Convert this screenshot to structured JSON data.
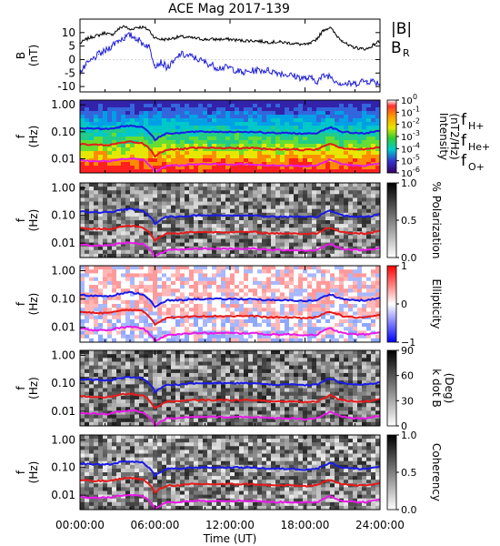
{
  "title": "ACE Mag 2017-139",
  "chart_data": [
    {
      "type": "line",
      "panel": "magnetic-field",
      "ylabel": "B",
      "yunit": "(nT)",
      "ylim": [
        -12,
        15
      ],
      "yticks": [
        "10",
        "5",
        "0",
        "-5",
        "-10"
      ],
      "ytick_values": [
        10,
        5,
        0,
        -5,
        -10
      ],
      "series": [
        {
          "name": "|B|",
          "color": "#000000",
          "x": [
            0,
            0.5,
            1,
            1.5,
            2,
            2.5,
            3,
            3.5,
            4,
            4.5,
            5,
            5.5,
            6,
            6.5,
            7,
            7.5,
            8,
            9,
            10,
            11,
            12,
            13,
            14,
            15,
            16,
            17,
            18,
            18.5,
            19,
            19.5,
            20,
            20.5,
            21,
            21.5,
            22,
            22.5,
            23,
            23.5,
            24
          ],
          "y": [
            6,
            7.5,
            8.5,
            9,
            10,
            9,
            11,
            12.5,
            11,
            12,
            12,
            11,
            8,
            7.5,
            7.5,
            8,
            8.5,
            8,
            7.5,
            7.5,
            7.5,
            7,
            7,
            6.5,
            6.5,
            6,
            5.5,
            6,
            8,
            11,
            12,
            9,
            7,
            5,
            4.5,
            4,
            4,
            5.5,
            7
          ]
        },
        {
          "name": "B",
          "sub": "R",
          "color": "#1f1fd6",
          "x": [
            0,
            0.5,
            1,
            1.5,
            2,
            2.5,
            3,
            3.5,
            4,
            4.5,
            5,
            5.5,
            6,
            6.5,
            7,
            7.5,
            8,
            9,
            10,
            11,
            12,
            13,
            14,
            15,
            16,
            17,
            18,
            18.5,
            19,
            19.5,
            20,
            20.5,
            21,
            21.5,
            22,
            22.5,
            23,
            23.5,
            24
          ],
          "y": [
            -5,
            -2,
            0,
            2,
            3,
            5,
            7,
            8,
            9,
            8,
            6,
            5,
            -2,
            -1,
            -3,
            -1,
            2,
            1,
            -1,
            -3,
            -3,
            -5,
            -4,
            -4,
            -5,
            -6,
            -7,
            -7,
            -8,
            -6,
            -6,
            -8,
            -9,
            -9,
            -9,
            -8,
            -8,
            -8,
            -9
          ]
        }
      ]
    },
    {
      "type": "heatmap",
      "panel": "intensity",
      "ylabel": "f",
      "yunit": "(Hz)",
      "colorbar": {
        "label_parts": [
          "Intensity",
          "(nT",
          "2",
          "/Hz)"
        ],
        "ticks": [
          "10",
          "10",
          "10",
          "10",
          "10",
          "10",
          "10"
        ],
        "tick_exponents": [
          "0",
          "-1",
          "-2",
          "-3",
          "-4",
          "-5",
          "-6"
        ]
      }
    },
    {
      "type": "heatmap",
      "panel": "polarization",
      "ylabel": "f",
      "yunit": "(Hz)",
      "colorbar": {
        "label": "% Polarization",
        "ticks": [
          "1.0",
          "0.5",
          "0.0"
        ]
      }
    },
    {
      "type": "heatmap",
      "panel": "ellipticity",
      "ylabel": "f",
      "yunit": "(Hz)",
      "colorbar": {
        "label": "Ellipticity",
        "ticks": [
          "1",
          "0",
          "−1"
        ]
      }
    },
    {
      "type": "heatmap",
      "panel": "k-dot-b",
      "ylabel": "f",
      "yunit": "(Hz)",
      "colorbar": {
        "label": "k dot B",
        "label2": "(Deg)",
        "ticks": [
          "90",
          "60",
          "30",
          "0"
        ]
      }
    },
    {
      "type": "heatmap",
      "panel": "coherency",
      "ylabel": "f",
      "yunit": "(Hz)",
      "colorbar": {
        "label": "Coherency",
        "ticks": [
          "1.0",
          "0.5",
          "0.0"
        ]
      }
    }
  ],
  "freq_axis": {
    "ticks": [
      "1.00",
      "0.10",
      "0.01"
    ],
    "tick_values": [
      1.0,
      0.1,
      0.01
    ],
    "range": [
      0.003,
      1.5
    ]
  },
  "gyro_lines": {
    "x": [
      0,
      1,
      2,
      2.5,
      3,
      3.5,
      4,
      4.5,
      5,
      5.5,
      6,
      6.5,
      7,
      8,
      9,
      10,
      11,
      12,
      13,
      14,
      15,
      16,
      17,
      18,
      19,
      19.5,
      20,
      20.5,
      21,
      22,
      23,
      24
    ],
    "fH_plus": [
      0.14,
      0.13,
      0.13,
      0.13,
      0.15,
      0.16,
      0.17,
      0.16,
      0.15,
      0.1,
      0.05,
      0.07,
      0.09,
      0.09,
      0.1,
      0.1,
      0.1,
      0.1,
      0.1,
      0.1,
      0.09,
      0.09,
      0.09,
      0.085,
      0.09,
      0.12,
      0.15,
      0.12,
      0.1,
      0.09,
      0.09,
      0.11
    ],
    "colors": {
      "fH": "#1a1ae6",
      "fHe": "#e61a1a",
      "fO": "#e61ae6"
    }
  },
  "legend": {
    "fH": {
      "main": "f",
      "sub": "H+"
    },
    "fHe": {
      "main": "f",
      "sub": "He+"
    },
    "fO": {
      "main": "f",
      "sub": "O+"
    }
  },
  "time_axis": {
    "ticks": [
      "00:00:00",
      "06:00:00",
      "12:00:00",
      "18:00:00",
      "24:00:00"
    ],
    "tick_values": [
      0,
      6,
      12,
      18,
      24
    ],
    "label": "Time (UT)"
  }
}
